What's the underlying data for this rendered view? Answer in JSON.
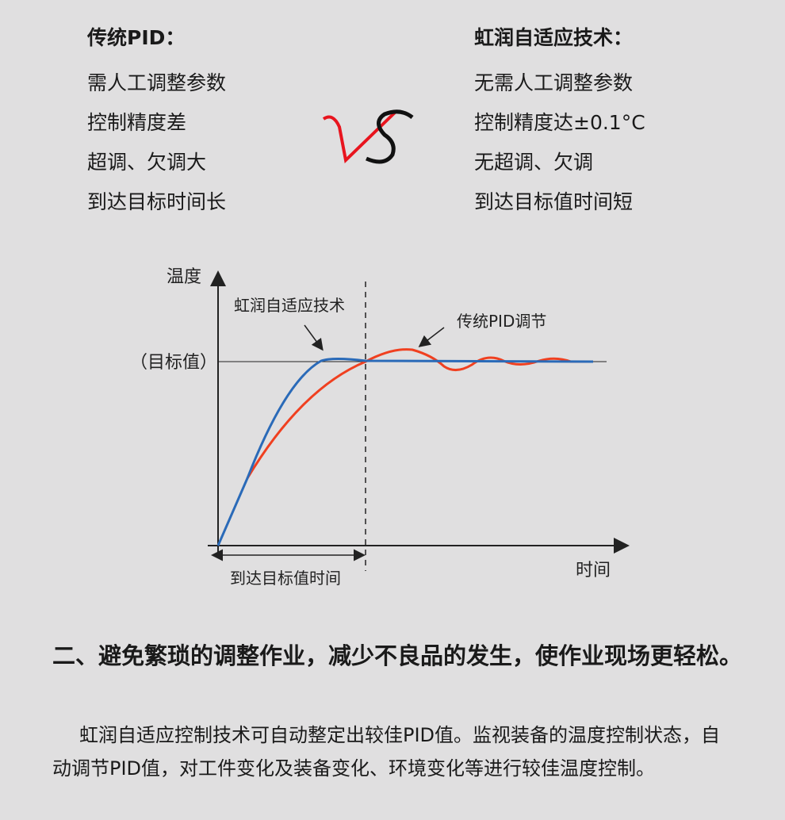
{
  "left": {
    "title": "传统PID：",
    "items": [
      "需人工调整参数",
      "控制精度差",
      "超调、欠调大",
      "到达目标时间长"
    ]
  },
  "right": {
    "title": "虹润自适应技术：",
    "items": [
      "无需人工调整参数",
      "控制精度达±0.1°C",
      "无超调、欠调",
      "到达目标值时间短"
    ]
  },
  "vs": {
    "v": "V",
    "s": "S"
  },
  "diagram": {
    "y_label": "温度",
    "x_label": "时间",
    "target_label": "（目标值）",
    "adaptive_label": "虹润自适应技术",
    "pid_label": "传统PID调节",
    "time_label": "到达目标值时间",
    "colors": {
      "adaptive": "#2a6ab8",
      "pid": "#f04020"
    }
  },
  "section": {
    "title": "二、避免繁琐的调整作业，减少不良品的发生，使作业现场更轻松。",
    "body": "虹润自适应控制技术可自动整定出较佳PID值。监视装备的温度控制状态，自动调节PID值，对工件变化及装备变化、环境变化等进行较佳温度控制。"
  }
}
